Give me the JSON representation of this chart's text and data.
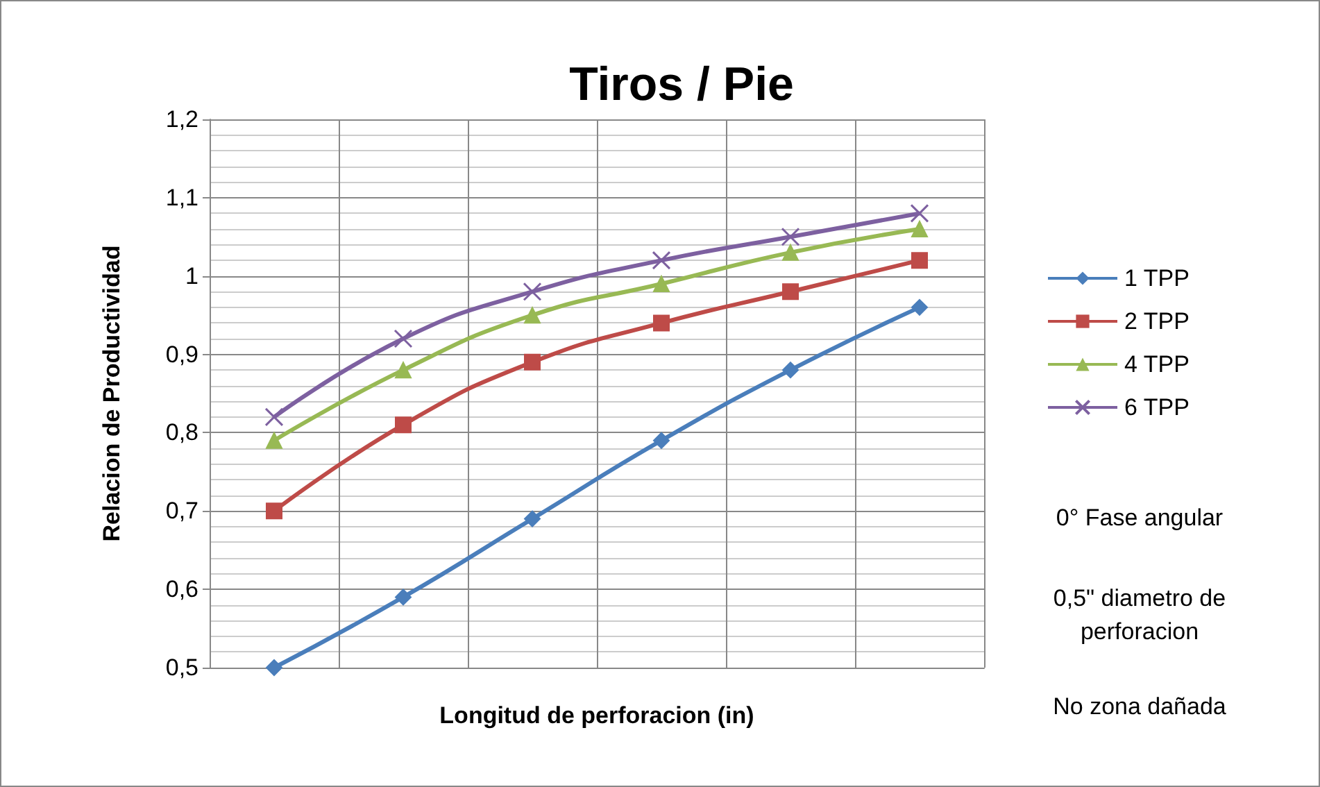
{
  "chart_data": {
    "type": "line",
    "title": "Tiros / Pie",
    "xlabel": "Longitud de perforacion (in)",
    "ylabel": "Relacion de Productividad",
    "categories": [
      null,
      null,
      null,
      null,
      null,
      null
    ],
    "series": [
      {
        "name": "1 TPP",
        "color": "#4a7ebb",
        "marker": "diamond",
        "values": [
          0.5,
          0.59,
          0.69,
          0.79,
          0.88,
          0.96
        ]
      },
      {
        "name": "2 TPP",
        "color": "#be4b48",
        "marker": "square",
        "values": [
          0.7,
          0.81,
          0.89,
          0.94,
          0.98,
          1.02
        ]
      },
      {
        "name": "4 TPP",
        "color": "#98b954",
        "marker": "triangle",
        "values": [
          0.79,
          0.88,
          0.95,
          0.99,
          1.03,
          1.06
        ]
      },
      {
        "name": "6 TPP",
        "color": "#7d60a0",
        "marker": "cross",
        "values": [
          0.82,
          0.92,
          0.98,
          1.02,
          1.05,
          1.08
        ]
      }
    ],
    "ylim": [
      0.5,
      1.2
    ],
    "yticks": [
      {
        "value": 0.5,
        "label": "0,5"
      },
      {
        "value": 0.6,
        "label": "0,6"
      },
      {
        "value": 0.7,
        "label": "0,7"
      },
      {
        "value": 0.8,
        "label": "0,8"
      },
      {
        "value": 0.9,
        "label": "0,9"
      },
      {
        "value": 1,
        "label": "1"
      },
      {
        "value": 1.1,
        "label": "1,1"
      },
      {
        "value": 1.2,
        "label": "1,2"
      }
    ],
    "grid": true,
    "legend": "right",
    "tick_labels": "y",
    "annotations": [
      "0° Fase angular",
      "0,5\" diametro de perforacion",
      "No zona dañada"
    ]
  }
}
